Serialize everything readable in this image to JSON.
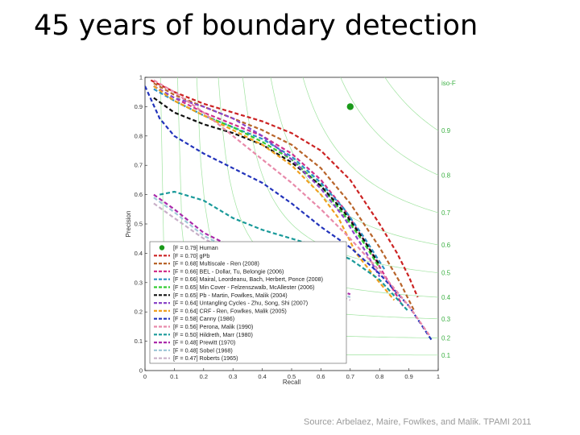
{
  "slide": {
    "title": "45 years of boundary detection",
    "source": "Source: Arbelaez, Maire, Fowlkes, and Malik. TPAMI 2011"
  },
  "chart_data": {
    "type": "line",
    "title": "",
    "xlabel": "Recall",
    "ylabel": "Precision",
    "xlim": [
      0,
      1
    ],
    "ylim": [
      0,
      1
    ],
    "xticks": [
      "0",
      "0.1",
      "0.2",
      "0.3",
      "0.4",
      "0.5",
      "0.6",
      "0.7",
      "0.8",
      "0.9",
      "1"
    ],
    "yticks": [
      "0",
      "0.1",
      "0.2",
      "0.3",
      "0.4",
      "0.5",
      "0.6",
      "0.7",
      "0.8",
      "0.9",
      "1"
    ],
    "iso_f_label": "iso-F",
    "iso_f_values": [
      0.9,
      0.8,
      0.7,
      0.6,
      0.5,
      0.4,
      0.3,
      0.2,
      0.1
    ],
    "iso_f_color": "#9fe39f",
    "grid": false,
    "legend_position": "lower-left",
    "human_point": {
      "label": "[F = 0.79] Human",
      "x": 0.7,
      "y": 0.9,
      "color": "#1a9a1a"
    },
    "series": [
      {
        "name": "[F = 0.70] gPb",
        "color": "#cc2222",
        "x": [
          0.02,
          0.1,
          0.2,
          0.3,
          0.4,
          0.5,
          0.6,
          0.7,
          0.8,
          0.86,
          0.9,
          0.93
        ],
        "y": [
          0.99,
          0.95,
          0.91,
          0.88,
          0.85,
          0.81,
          0.75,
          0.65,
          0.5,
          0.4,
          0.32,
          0.25
        ]
      },
      {
        "name": "[F = 0.68] Multiscale - Ren (2008)",
        "color": "#b8642a",
        "x": [
          0.03,
          0.1,
          0.2,
          0.3,
          0.4,
          0.5,
          0.6,
          0.7,
          0.8,
          0.87,
          0.92
        ],
        "y": [
          0.98,
          0.94,
          0.9,
          0.86,
          0.82,
          0.77,
          0.69,
          0.57,
          0.42,
          0.3,
          0.2
        ]
      },
      {
        "name": "[F = 0.66] BEL - Dollar, Tu, Belongie (2006)",
        "color": "#d0308a",
        "x": [
          0.03,
          0.1,
          0.2,
          0.3,
          0.4,
          0.5,
          0.6,
          0.68,
          0.75,
          0.82,
          0.88
        ],
        "y": [
          0.97,
          0.93,
          0.88,
          0.84,
          0.8,
          0.74,
          0.65,
          0.55,
          0.44,
          0.32,
          0.22
        ]
      },
      {
        "name": "[F = 0.66] Mairal, Leordeanu, Bach, Herbert, Ponce (2008)",
        "color": "#2b8fc4",
        "x": [
          0.03,
          0.1,
          0.2,
          0.3,
          0.4,
          0.5,
          0.6,
          0.68,
          0.75,
          0.82
        ],
        "y": [
          0.96,
          0.92,
          0.87,
          0.83,
          0.79,
          0.73,
          0.64,
          0.55,
          0.45,
          0.34
        ]
      },
      {
        "name": "[F = 0.65] Min Cover - Felzenszwalb, McAllester (2006)",
        "color": "#33cc33",
        "x": [
          0.03,
          0.1,
          0.2,
          0.3,
          0.4,
          0.5,
          0.6,
          0.68,
          0.75,
          0.8
        ],
        "y": [
          0.97,
          0.92,
          0.87,
          0.83,
          0.78,
          0.72,
          0.63,
          0.53,
          0.43,
          0.35
        ]
      },
      {
        "name": "[F = 0.65] Pb - Martin, Fowlkes, Malik (2004)",
        "color": "#111111",
        "x": [
          0.03,
          0.1,
          0.2,
          0.3,
          0.4,
          0.5,
          0.6,
          0.68,
          0.75,
          0.8
        ],
        "y": [
          0.93,
          0.88,
          0.84,
          0.81,
          0.77,
          0.71,
          0.63,
          0.54,
          0.44,
          0.36
        ]
      },
      {
        "name": "[F = 0.64] Untangling Cycles - Zhu, Song, Shi (2007)",
        "color": "#8a45c8",
        "x": [
          0.03,
          0.1,
          0.2,
          0.3,
          0.4,
          0.5,
          0.6,
          0.68,
          0.75,
          0.8
        ],
        "y": [
          0.97,
          0.93,
          0.9,
          0.86,
          0.8,
          0.72,
          0.62,
          0.52,
          0.41,
          0.32
        ]
      },
      {
        "name": "[F = 0.64] CRF - Ren, Fowlkes, Malik (2005)",
        "color": "#f0a020",
        "x": [
          0.03,
          0.1,
          0.2,
          0.3,
          0.4,
          0.5,
          0.6,
          0.66,
          0.72,
          0.8,
          0.85
        ],
        "y": [
          0.97,
          0.92,
          0.87,
          0.82,
          0.77,
          0.7,
          0.6,
          0.52,
          0.4,
          0.3,
          0.24
        ]
      },
      {
        "name": "[F = 0.58] Canny (1986)",
        "color": "#2233bb",
        "x": [
          0.0,
          0.05,
          0.1,
          0.2,
          0.3,
          0.4,
          0.5,
          0.6,
          0.7,
          0.8,
          0.9,
          0.98
        ],
        "y": [
          0.97,
          0.86,
          0.8,
          0.74,
          0.69,
          0.64,
          0.57,
          0.49,
          0.42,
          0.33,
          0.22,
          0.1
        ]
      },
      {
        "name": "[F = 0.56] Perona, Malik (1990)",
        "color": "#e88aaa",
        "x": [
          0.03,
          0.1,
          0.2,
          0.3,
          0.4,
          0.5,
          0.6,
          0.7,
          0.8,
          0.9,
          0.97
        ],
        "y": [
          0.99,
          0.95,
          0.88,
          0.8,
          0.72,
          0.64,
          0.55,
          0.45,
          0.34,
          0.22,
          0.12
        ]
      },
      {
        "name": "[F = 0.50] Hildreth, Marr (1980)",
        "color": "#1a9a9a",
        "x": [
          0.05,
          0.1,
          0.2,
          0.3,
          0.4,
          0.5,
          0.6,
          0.7,
          0.8,
          0.9
        ],
        "y": [
          0.6,
          0.61,
          0.58,
          0.52,
          0.48,
          0.45,
          0.42,
          0.38,
          0.31,
          0.2
        ]
      },
      {
        "name": "[F = 0.48] Prewitt (1970)",
        "color": "#aa2aaa",
        "x": [
          0.03,
          0.1,
          0.2,
          0.3,
          0.4,
          0.5,
          0.6,
          0.7
        ],
        "y": [
          0.6,
          0.55,
          0.47,
          0.42,
          0.38,
          0.34,
          0.3,
          0.26
        ]
      },
      {
        "name": "[F = 0.48] Sobel (1968)",
        "color": "#a0c8d8",
        "x": [
          0.03,
          0.1,
          0.2,
          0.3,
          0.4,
          0.5,
          0.6,
          0.7
        ],
        "y": [
          0.59,
          0.54,
          0.46,
          0.41,
          0.37,
          0.33,
          0.29,
          0.25
        ]
      },
      {
        "name": "[F = 0.47] Roberts (1965)",
        "color": "#c8b0c8",
        "x": [
          0.03,
          0.1,
          0.2,
          0.3,
          0.4,
          0.5,
          0.6,
          0.7
        ],
        "y": [
          0.57,
          0.52,
          0.45,
          0.4,
          0.36,
          0.32,
          0.28,
          0.24
        ]
      }
    ]
  }
}
